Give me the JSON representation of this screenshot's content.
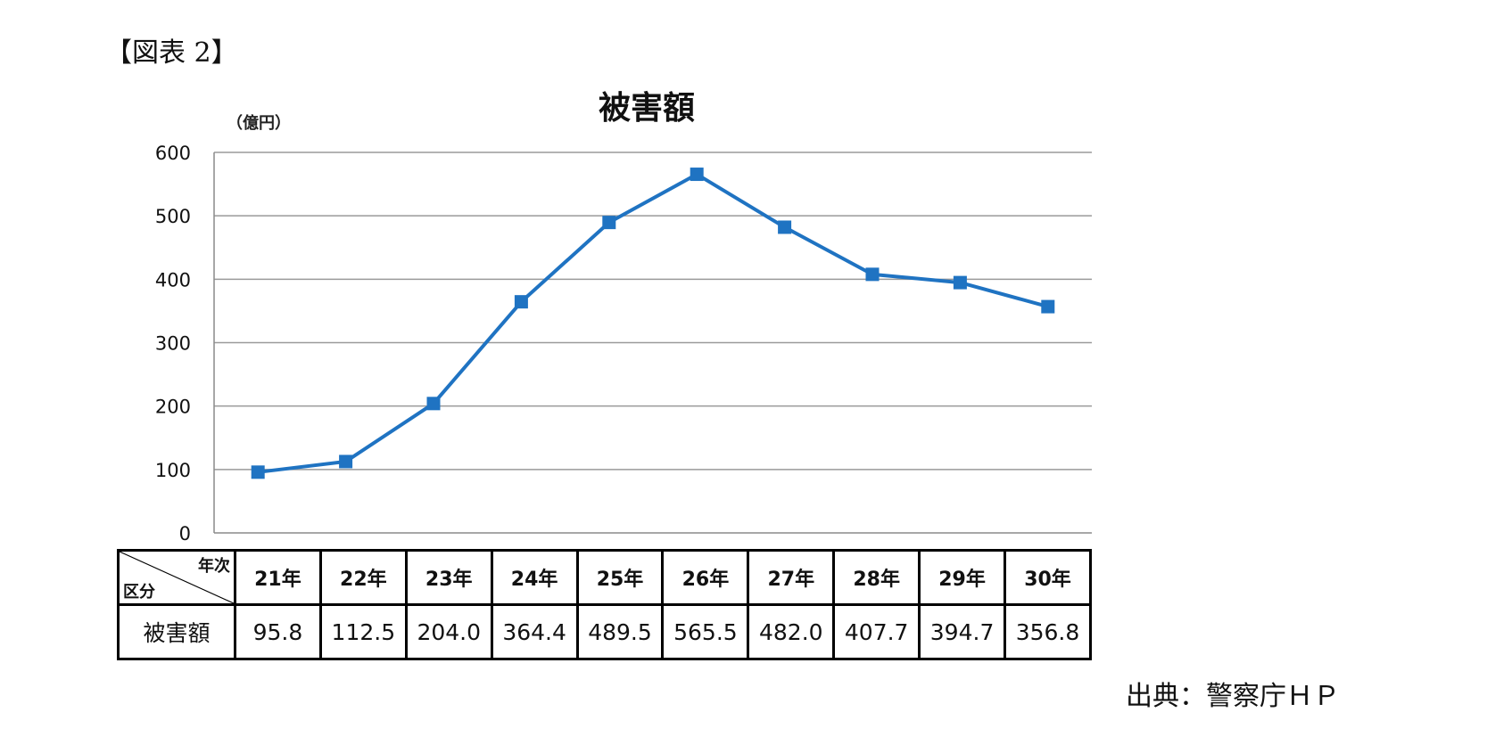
{
  "figure_label": "【図表 2】",
  "source": "出典：警察庁ＨＰ",
  "chart_data": {
    "type": "line",
    "title": "被害額",
    "ylabel": "（億円）",
    "xlabel": "",
    "ylim": [
      0,
      600
    ],
    "yticks": [
      0,
      100,
      200,
      300,
      400,
      500,
      600
    ],
    "categories": [
      "21年",
      "22年",
      "23年",
      "24年",
      "25年",
      "26年",
      "27年",
      "28年",
      "29年",
      "30年"
    ],
    "series": [
      {
        "values": [
          95.8,
          112.5,
          204.0,
          364.4,
          489.5,
          565.5,
          482.0,
          407.7,
          394.7,
          356.8
        ]
      }
    ],
    "grid": true,
    "line_color": "#1f73c2"
  },
  "table": {
    "corner_top": "年次",
    "corner_bottom": "区分",
    "row_label": "被害額",
    "values": [
      "95.8",
      "112.5",
      "204.0",
      "364.4",
      "489.5",
      "565.5",
      "482.0",
      "407.7",
      "394.7",
      "356.8"
    ]
  }
}
